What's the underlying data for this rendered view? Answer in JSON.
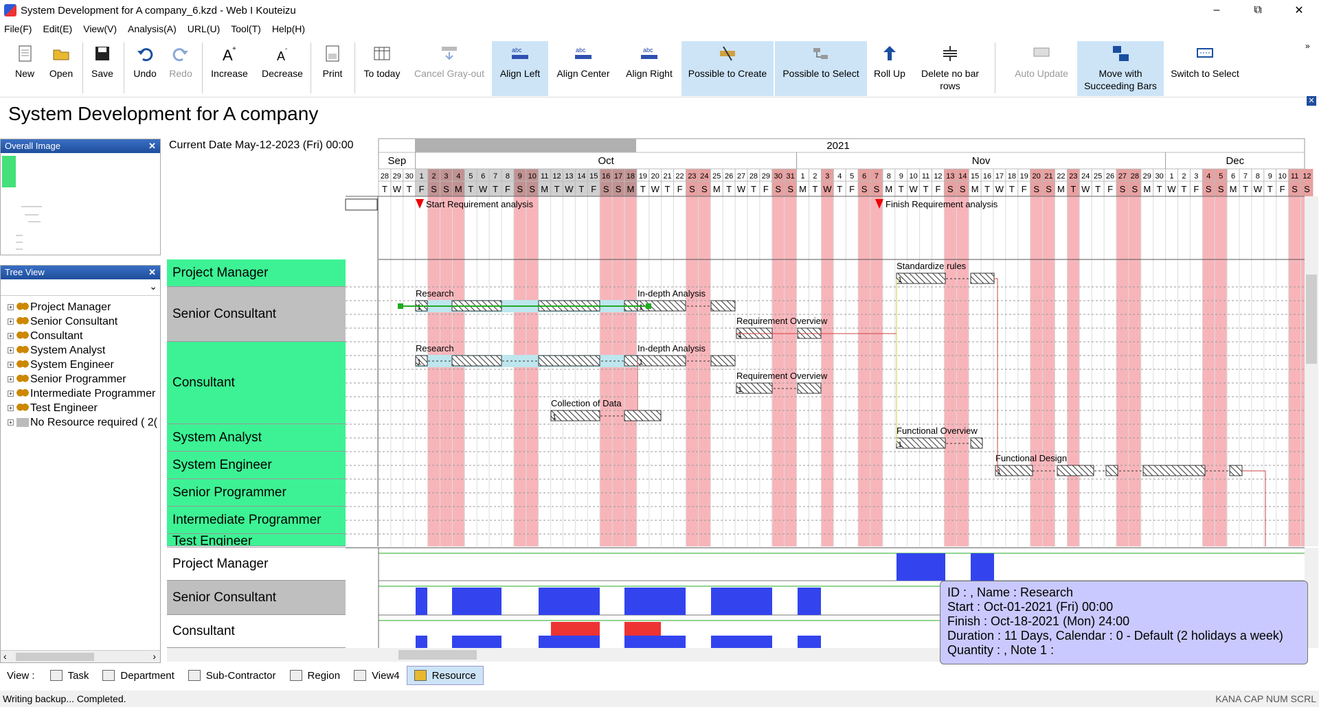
{
  "window": {
    "title": "System Development for A company_6.kzd - Web I Kouteizu"
  },
  "menu": [
    "File(F)",
    "Edit(E)",
    "View(V)",
    "Analysis(A)",
    "URL(U)",
    "Tool(T)",
    "Help(H)"
  ],
  "toolbar": {
    "new": "New",
    "open": "Open",
    "save": "Save",
    "undo": "Undo",
    "redo": "Redo",
    "increase": "Increase",
    "decrease": "Decrease",
    "print": "Print",
    "to_today": "To today",
    "cancel_grayout": "Cancel Gray-out",
    "align_left": "Align Left",
    "align_center": "Align Center",
    "align_right": "Align Right",
    "possible_create": "Possible to Create",
    "possible_select": "Possible to Select",
    "roll_up": "Roll Up",
    "delete_no_bar": "Delete no bar rows",
    "auto_update": "Auto Update",
    "move_succeeding": "Move with Succeeding Bars",
    "switch_select": "Switch to Select"
  },
  "doc_title": "System Development for A company",
  "overall_image": {
    "title": "Overall Image"
  },
  "tree_view": {
    "title": "Tree View",
    "items": [
      "Project Manager",
      "Senior Consultant",
      "Consultant",
      "System Analyst",
      "System Engineer",
      "Senior Programmer",
      "Intermediate Programmer",
      "Test Engineer",
      "No Resource required ( 2("
    ]
  },
  "gantt": {
    "current_date": "Current Date May-12-2023 (Fri) 00:00",
    "year": "2021",
    "months": [
      "Sep",
      "Oct",
      "Nov",
      "Dec"
    ],
    "rows": [
      "Project Manager",
      "Senior Consultant",
      "Consultant",
      "System Analyst",
      "System Engineer",
      "Senior Programmer",
      "Intermediate Programmer",
      "Test Engineer"
    ],
    "milestones": [
      "Start Requirement analysis",
      "Finish Requirement analysis"
    ],
    "tasks": [
      "Standardize rules",
      "Research",
      "In-depth Analysis",
      "Requirement Overview",
      "Research",
      "In-depth Analysis",
      "Requirement Overview",
      "Collection of Data",
      "Functional Overview",
      "Functional Design"
    ]
  },
  "histogram": {
    "rows": [
      "Project Manager",
      "Senior Consultant",
      "Consultant"
    ]
  },
  "tooltip": {
    "line1": "ID : , Name : Research",
    "line2": "Start : Oct-01-2021 (Fri) 00:00",
    "line3": "Finish : Oct-18-2021 (Mon) 24:00",
    "line4": "Duration : 11 Days, Calendar : 0 - Default (2 holidays a week)",
    "line5": "Quantity : , Note 1 :"
  },
  "viewbar": {
    "label": "View :",
    "items": [
      "Task",
      "Department",
      "Sub-Contractor",
      "Region",
      "View4",
      "Resource"
    ]
  },
  "status": {
    "text": "Writing backup... Completed.",
    "keys": "KANA CAP NUM SCRL"
  }
}
